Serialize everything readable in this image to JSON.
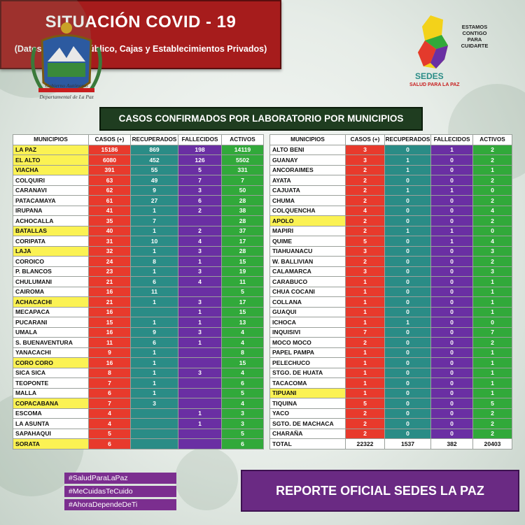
{
  "title": "SITUACIÓN  COVID - 19",
  "subtitle": "(Datos: Sistema Público, Cajas y Establecimientos Privados)",
  "banner": "CASOS CONFIRMADOS POR LABORATORIO POR MUNICIPIOS",
  "left_logo": {
    "line1": "Gobierno Autónomo",
    "line2": "Departamental de La Paz"
  },
  "right_logo": {
    "tagline1": "ESTAMOS",
    "tagline2": "CONTIGO",
    "tagline3": "PARA",
    "tagline4": "CUIDARTE",
    "brand": "SEDES",
    "brand_sub": "SALUD PARA LA PAZ"
  },
  "headers": {
    "municipio": "MUNICIPIOS",
    "casos": "CASOS (+)",
    "recuperados": "RECUPERADOS",
    "fallecidos": "FALLECIDOS",
    "activos": "ACTIVOS"
  },
  "left_rows": [
    {
      "name": "LA PAZ",
      "casos": "15186",
      "rec": "869",
      "fal": "198",
      "act": "14119",
      "hl": true
    },
    {
      "name": "EL ALTO",
      "casos": "6080",
      "rec": "452",
      "fal": "126",
      "act": "5502",
      "hl": true
    },
    {
      "name": "VIACHA",
      "casos": "391",
      "rec": "55",
      "fal": "5",
      "act": "331",
      "hl": true
    },
    {
      "name": "COLQUIRI",
      "casos": "63",
      "rec": "49",
      "fal": "7",
      "act": "7",
      "hl": false
    },
    {
      "name": "CARANAVI",
      "casos": "62",
      "rec": "9",
      "fal": "3",
      "act": "50",
      "hl": false
    },
    {
      "name": "PATACAMAYA",
      "casos": "61",
      "rec": "27",
      "fal": "6",
      "act": "28",
      "hl": false
    },
    {
      "name": "IRUPANA",
      "casos": "41",
      "rec": "1",
      "fal": "2",
      "act": "38",
      "hl": false
    },
    {
      "name": "ACHOCALLA",
      "casos": "35",
      "rec": "7",
      "fal": "",
      "act": "28",
      "hl": false
    },
    {
      "name": "BATALLAS",
      "casos": "40",
      "rec": "1",
      "fal": "2",
      "act": "37",
      "hl": true
    },
    {
      "name": "CORIPATA",
      "casos": "31",
      "rec": "10",
      "fal": "4",
      "act": "17",
      "hl": false
    },
    {
      "name": "LAJA",
      "casos": "32",
      "rec": "1",
      "fal": "3",
      "act": "28",
      "hl": true
    },
    {
      "name": "COROICO",
      "casos": "24",
      "rec": "8",
      "fal": "1",
      "act": "15",
      "hl": false
    },
    {
      "name": "P. BLANCOS",
      "casos": "23",
      "rec": "1",
      "fal": "3",
      "act": "19",
      "hl": false
    },
    {
      "name": "CHULUMANI",
      "casos": "21",
      "rec": "6",
      "fal": "4",
      "act": "11",
      "hl": false
    },
    {
      "name": "CAIROMA",
      "casos": "16",
      "rec": "11",
      "fal": "",
      "act": "5",
      "hl": false
    },
    {
      "name": "ACHACACHI",
      "casos": "21",
      "rec": "1",
      "fal": "3",
      "act": "17",
      "hl": true
    },
    {
      "name": "MECAPACA",
      "casos": "16",
      "rec": "",
      "fal": "1",
      "act": "15",
      "hl": false
    },
    {
      "name": "PUCARANI",
      "casos": "15",
      "rec": "1",
      "fal": "1",
      "act": "13",
      "hl": false
    },
    {
      "name": "UMALA",
      "casos": "16",
      "rec": "9",
      "fal": "3",
      "act": "4",
      "hl": false
    },
    {
      "name": "S. BUENAVENTURA",
      "casos": "11",
      "rec": "6",
      "fal": "1",
      "act": "4",
      "hl": false
    },
    {
      "name": "YANACACHI",
      "casos": "9",
      "rec": "1",
      "fal": "",
      "act": "8",
      "hl": false
    },
    {
      "name": "CORO CORO",
      "casos": "16",
      "rec": "1",
      "fal": "",
      "act": "15",
      "hl": true
    },
    {
      "name": "SICA SICA",
      "casos": "8",
      "rec": "1",
      "fal": "3",
      "act": "4",
      "hl": false
    },
    {
      "name": "TEOPONTE",
      "casos": "7",
      "rec": "1",
      "fal": "",
      "act": "6",
      "hl": false
    },
    {
      "name": "MALLA",
      "casos": "6",
      "rec": "1",
      "fal": "",
      "act": "5",
      "hl": false
    },
    {
      "name": "COPACABANA",
      "casos": "7",
      "rec": "3",
      "fal": "",
      "act": "4",
      "hl": true
    },
    {
      "name": "ESCOMA",
      "casos": "4",
      "rec": "",
      "fal": "1",
      "act": "3",
      "hl": false
    },
    {
      "name": "LA ASUNTA",
      "casos": "4",
      "rec": "",
      "fal": "1",
      "act": "3",
      "hl": false
    },
    {
      "name": "SAPAHAQUI",
      "casos": "5",
      "rec": "",
      "fal": "",
      "act": "5",
      "hl": false
    },
    {
      "name": "SORATA",
      "casos": "6",
      "rec": "",
      "fal": "",
      "act": "6",
      "hl": true
    }
  ],
  "right_rows": [
    {
      "name": "ALTO BENI",
      "casos": "3",
      "rec": "0",
      "fal": "1",
      "act": "2",
      "hl": false
    },
    {
      "name": "GUANAY",
      "casos": "3",
      "rec": "1",
      "fal": "0",
      "act": "2",
      "hl": false
    },
    {
      "name": "ANCORAIMES",
      "casos": "2",
      "rec": "1",
      "fal": "0",
      "act": "1",
      "hl": false
    },
    {
      "name": "AYATA",
      "casos": "2",
      "rec": "0",
      "fal": "0",
      "act": "2",
      "hl": false
    },
    {
      "name": "CAJUATA",
      "casos": "2",
      "rec": "1",
      "fal": "1",
      "act": "0",
      "hl": false
    },
    {
      "name": "CHUMA",
      "casos": "2",
      "rec": "0",
      "fal": "0",
      "act": "2",
      "hl": false
    },
    {
      "name": "COLQUENCHA",
      "casos": "4",
      "rec": "0",
      "fal": "0",
      "act": "4",
      "hl": false
    },
    {
      "name": "APOLO",
      "casos": "2",
      "rec": "0",
      "fal": "0",
      "act": "2",
      "hl": true
    },
    {
      "name": "MAPIRI",
      "casos": "2",
      "rec": "1",
      "fal": "1",
      "act": "0",
      "hl": false
    },
    {
      "name": "QUIME",
      "casos": "5",
      "rec": "0",
      "fal": "1",
      "act": "4",
      "hl": false
    },
    {
      "name": "TIAHUANACU",
      "casos": "3",
      "rec": "0",
      "fal": "0",
      "act": "3",
      "hl": false
    },
    {
      "name": "W. BALLIVIAN",
      "casos": "2",
      "rec": "0",
      "fal": "0",
      "act": "2",
      "hl": false
    },
    {
      "name": "CALAMARCA",
      "casos": "3",
      "rec": "0",
      "fal": "0",
      "act": "3",
      "hl": false
    },
    {
      "name": "CARABUCO",
      "casos": "1",
      "rec": "0",
      "fal": "0",
      "act": "1",
      "hl": false
    },
    {
      "name": "CHUA COCANI",
      "casos": "1",
      "rec": "0",
      "fal": "0",
      "act": "1",
      "hl": false
    },
    {
      "name": "COLLANA",
      "casos": "1",
      "rec": "0",
      "fal": "0",
      "act": "1",
      "hl": false
    },
    {
      "name": "GUAQUI",
      "casos": "1",
      "rec": "0",
      "fal": "0",
      "act": "1",
      "hl": false
    },
    {
      "name": "ICHOCA",
      "casos": "1",
      "rec": "1",
      "fal": "0",
      "act": "0",
      "hl": false
    },
    {
      "name": "INQUISIVI",
      "casos": "7",
      "rec": "0",
      "fal": "0",
      "act": "7",
      "hl": false
    },
    {
      "name": "MOCO MOCO",
      "casos": "2",
      "rec": "0",
      "fal": "0",
      "act": "2",
      "hl": false
    },
    {
      "name": "PAPEL PAMPA",
      "casos": "1",
      "rec": "0",
      "fal": "0",
      "act": "1",
      "hl": false
    },
    {
      "name": "PELECHUCO",
      "casos": "1",
      "rec": "0",
      "fal": "0",
      "act": "1",
      "hl": false
    },
    {
      "name": "STGO. DE HUATA",
      "casos": "1",
      "rec": "0",
      "fal": "0",
      "act": "1",
      "hl": false
    },
    {
      "name": "TACACOMA",
      "casos": "1",
      "rec": "0",
      "fal": "0",
      "act": "1",
      "hl": false
    },
    {
      "name": "TIPUANI",
      "casos": "1",
      "rec": "0",
      "fal": "0",
      "act": "1",
      "hl": true
    },
    {
      "name": "TIQUINA",
      "casos": "5",
      "rec": "0",
      "fal": "0",
      "act": "5",
      "hl": false
    },
    {
      "name": "YACO",
      "casos": "2",
      "rec": "0",
      "fal": "0",
      "act": "2",
      "hl": false
    },
    {
      "name": "SGTO. DE MACHACA",
      "casos": "2",
      "rec": "0",
      "fal": "0",
      "act": "2",
      "hl": false
    },
    {
      "name": "CHARAÑA",
      "casos": "2",
      "rec": "0",
      "fal": "0",
      "act": "2",
      "hl": false
    }
  ],
  "total": {
    "name": "TOTAL",
    "casos": "22322",
    "rec": "1537",
    "fal": "382",
    "act": "20403"
  },
  "hashtags": [
    "#SaludParaLaPaz",
    "#MeCuidasTeCuido",
    "#AhoraDependeDeTi"
  ],
  "report": "REPORTE OFICIAL SEDES LA PAZ",
  "colors": {
    "casos": "#e83a2c",
    "recuperados": "#2a8c86",
    "fallecidos": "#6a2fa3",
    "activos": "#31a93a",
    "highlight": "#fbf253",
    "title_bg": "#a61c1c",
    "banner_bg": "#1f3d20",
    "report_bg": "#6a2a83"
  }
}
